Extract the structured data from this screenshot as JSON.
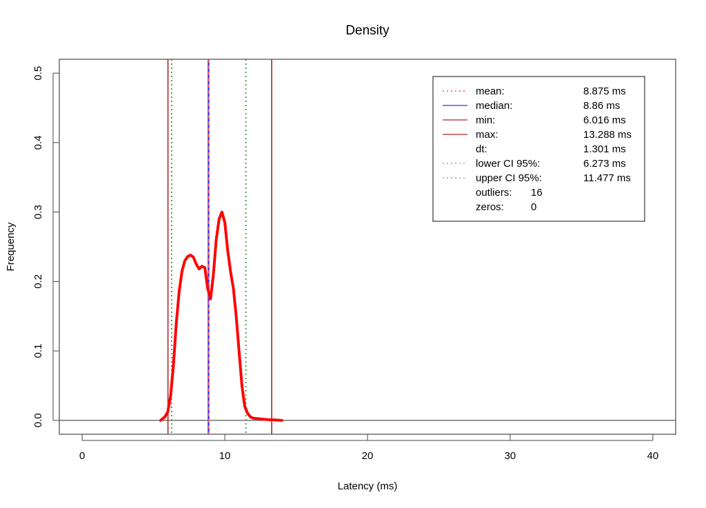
{
  "chart_data": {
    "type": "line",
    "title": "Density",
    "xlabel": "Latency (ms)",
    "ylabel": "Frequency",
    "xlim": [
      -1.6,
      41.6
    ],
    "ylim": [
      -0.02,
      0.52
    ],
    "x_ticks": [
      0,
      10,
      20,
      30,
      40
    ],
    "x_tick_labels": [
      "0",
      "10",
      "20",
      "30",
      "40"
    ],
    "y_ticks": [
      0.0,
      0.1,
      0.2,
      0.3,
      0.4,
      0.5
    ],
    "y_tick_labels": [
      "0.0",
      "0.1",
      "0.2",
      "0.3",
      "0.4",
      "0.5"
    ],
    "grid": false,
    "legend_position": "top-right",
    "baseline": 0,
    "series": [
      {
        "type": "density",
        "color": "#ff0000",
        "x": [
          5.5,
          5.8,
          6.0,
          6.2,
          6.4,
          6.6,
          6.8,
          7.0,
          7.2,
          7.4,
          7.6,
          7.8,
          8.0,
          8.2,
          8.4,
          8.6,
          8.8,
          9.0,
          9.2,
          9.4,
          9.6,
          9.8,
          10.0,
          10.2,
          10.4,
          10.6,
          10.8,
          11.0,
          11.2,
          11.4,
          11.6,
          11.8,
          12.0,
          12.5,
          13.0,
          13.5,
          14.0
        ],
        "y": [
          0.0,
          0.005,
          0.012,
          0.035,
          0.08,
          0.14,
          0.185,
          0.215,
          0.23,
          0.236,
          0.238,
          0.235,
          0.225,
          0.218,
          0.222,
          0.22,
          0.19,
          0.175,
          0.21,
          0.26,
          0.29,
          0.3,
          0.285,
          0.245,
          0.215,
          0.19,
          0.15,
          0.1,
          0.05,
          0.02,
          0.01,
          0.005,
          0.003,
          0.002,
          0.001,
          0.0005,
          0.0
        ]
      }
    ],
    "vlines": [
      {
        "name": "min",
        "x": 6.016,
        "color": "#b33a3a",
        "dash": "solid"
      },
      {
        "name": "lower CI 95%",
        "x": 6.273,
        "color": "#2e9e2e",
        "dash": "dotted"
      },
      {
        "name": "median",
        "x": 8.86,
        "color": "#3333ee",
        "dash": "solid"
      },
      {
        "name": "mean",
        "x": 8.875,
        "color": "#ff6666",
        "dash": "dashed"
      },
      {
        "name": "upper CI 95%",
        "x": 11.477,
        "color": "#2e9e2e",
        "dash": "dotted"
      },
      {
        "name": "max",
        "x": 13.288,
        "color": "#b33a3a",
        "dash": "solid"
      }
    ],
    "legend": [
      {
        "label": "mean:",
        "value": "8.875 ms",
        "color": "#ff6666",
        "dash": "dotted"
      },
      {
        "label": "median:",
        "value": "8.86 ms",
        "color": "#6b6bf0",
        "dash": "solid"
      },
      {
        "label": "min:",
        "value": "6.016 ms",
        "color": "#c46464",
        "dash": "solid"
      },
      {
        "label": "max:",
        "value": "13.288 ms",
        "color": "#c46464",
        "dash": "solid"
      },
      {
        "label": "dt:",
        "value": "1.301 ms",
        "color": "",
        "dash": "none"
      },
      {
        "label": "lower CI 95%:",
        "value": "6.273 ms",
        "color": "#8fc88f",
        "dash": "dotted"
      },
      {
        "label": "upper CI 95%:",
        "value": "11.477 ms",
        "color": "#8fc88f",
        "dash": "dotted"
      },
      {
        "label": "outliers:",
        "value": "16",
        "color": "",
        "dash": "none",
        "inline": true
      },
      {
        "label": "zeros:",
        "value": "0",
        "color": "",
        "dash": "none",
        "inline": true
      }
    ]
  }
}
